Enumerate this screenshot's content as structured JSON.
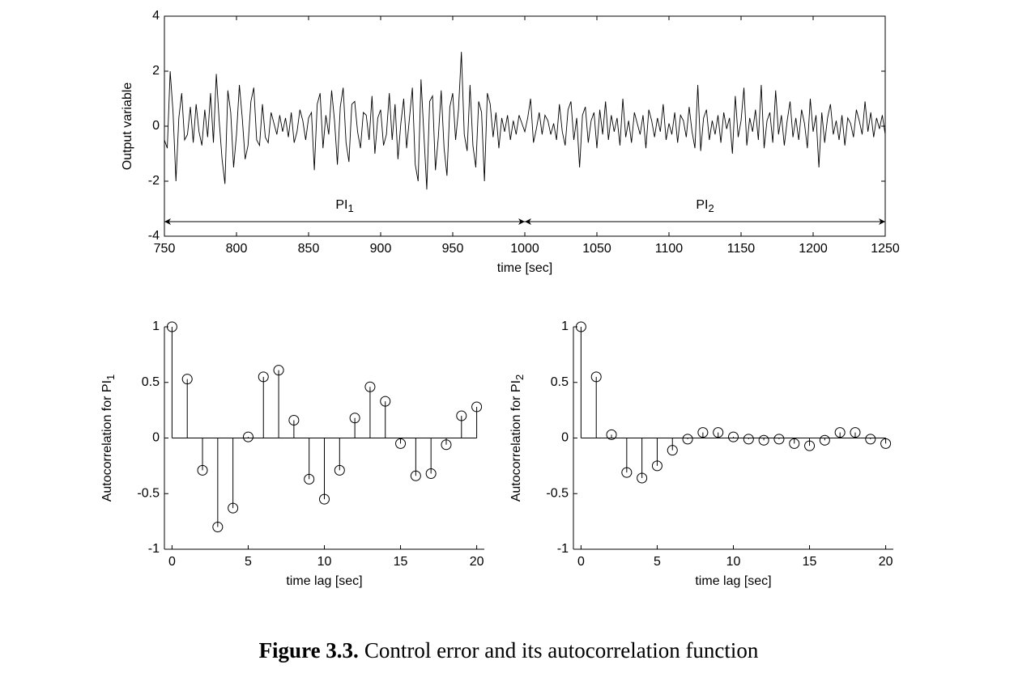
{
  "chart_data": [
    {
      "type": "line",
      "color": "#000000",
      "xlabel": "time [sec]",
      "ylabel": "Output variable",
      "xlim": [
        750,
        1250
      ],
      "ylim": [
        -4,
        4
      ],
      "xticks": [
        750,
        800,
        850,
        900,
        950,
        1000,
        1050,
        1100,
        1150,
        1200,
        1250
      ],
      "yticks": [
        -4,
        -2,
        0,
        2,
        4
      ],
      "x": [
        750,
        752,
        754,
        756,
        758,
        760,
        762,
        764,
        766,
        768,
        770,
        772,
        774,
        776,
        778,
        780,
        782,
        784,
        786,
        788,
        790,
        792,
        794,
        796,
        798,
        800,
        802,
        804,
        806,
        808,
        810,
        812,
        814,
        816,
        818,
        820,
        822,
        824,
        826,
        828,
        830,
        832,
        834,
        836,
        838,
        840,
        842,
        844,
        846,
        848,
        850,
        852,
        854,
        856,
        858,
        860,
        862,
        864,
        866,
        868,
        870,
        872,
        874,
        876,
        878,
        880,
        882,
        884,
        886,
        888,
        890,
        892,
        894,
        896,
        898,
        900,
        902,
        904,
        906,
        908,
        910,
        912,
        914,
        916,
        918,
        920,
        922,
        924,
        926,
        928,
        930,
        932,
        934,
        936,
        938,
        940,
        942,
        944,
        946,
        948,
        950,
        952,
        954,
        956,
        958,
        960,
        962,
        964,
        966,
        968,
        970,
        972,
        974,
        976,
        978,
        980,
        982,
        984,
        986,
        988,
        990,
        992,
        994,
        996,
        998,
        1000,
        1002,
        1004,
        1006,
        1008,
        1010,
        1012,
        1014,
        1016,
        1018,
        1020,
        1022,
        1024,
        1026,
        1028,
        1030,
        1032,
        1034,
        1036,
        1038,
        1040,
        1042,
        1044,
        1046,
        1048,
        1050,
        1052,
        1054,
        1056,
        1058,
        1060,
        1062,
        1064,
        1066,
        1068,
        1070,
        1072,
        1074,
        1076,
        1078,
        1080,
        1082,
        1084,
        1086,
        1088,
        1090,
        1092,
        1094,
        1096,
        1098,
        1100,
        1102,
        1104,
        1106,
        1108,
        1110,
        1112,
        1114,
        1116,
        1118,
        1120,
        1122,
        1124,
        1126,
        1128,
        1130,
        1132,
        1134,
        1136,
        1138,
        1140,
        1142,
        1144,
        1146,
        1148,
        1150,
        1152,
        1154,
        1156,
        1158,
        1160,
        1162,
        1164,
        1166,
        1168,
        1170,
        1172,
        1174,
        1176,
        1178,
        1180,
        1182,
        1184,
        1186,
        1188,
        1190,
        1192,
        1194,
        1196,
        1198,
        1200,
        1202,
        1204,
        1206,
        1208,
        1210,
        1212,
        1214,
        1216,
        1218,
        1220,
        1222,
        1224,
        1226,
        1228,
        1230,
        1232,
        1234,
        1236,
        1238,
        1240,
        1242,
        1244,
        1246,
        1248,
        1250
      ],
      "values": [
        -0.5,
        -0.8,
        2.0,
        0.5,
        -2.0,
        0.3,
        1.2,
        -0.5,
        -0.3,
        0.7,
        -0.6,
        0.8,
        -0.2,
        -0.7,
        0.6,
        -0.4,
        1.2,
        -0.6,
        1.9,
        0.2,
        -1.2,
        -2.1,
        1.3,
        0.5,
        -1.5,
        -0.3,
        1.5,
        0.3,
        -1.2,
        -0.7,
        0.9,
        1.4,
        -0.5,
        -0.7,
        0.8,
        -0.4,
        -0.6,
        0.5,
        0.1,
        -0.3,
        0.4,
        -0.2,
        0.3,
        -0.4,
        0.5,
        -0.6,
        -0.2,
        0.6,
        0.2,
        -0.5,
        0.3,
        0.5,
        -1.6,
        0.8,
        1.2,
        -0.8,
        0.4,
        -0.3,
        1.3,
        0.2,
        -1.4,
        0.7,
        1.4,
        -0.6,
        -1.3,
        0.8,
        0.9,
        -0.2,
        -0.8,
        0.5,
        0.4,
        -0.5,
        1.1,
        -1.0,
        0.3,
        0.6,
        -0.7,
        -0.3,
        1.2,
        -0.5,
        0.8,
        -1.2,
        0.1,
        1.0,
        -0.8,
        0.3,
        1.4,
        -1.4,
        -2.0,
        1.7,
        -0.3,
        -2.3,
        0.9,
        1.1,
        -1.6,
        -0.4,
        1.3,
        -0.8,
        -1.8,
        0.7,
        1.2,
        -0.5,
        0.6,
        2.7,
        -0.3,
        -0.9,
        1.5,
        -0.7,
        -1.5,
        0.9,
        0.5,
        -2.0,
        1.2,
        0.8,
        -0.4,
        0.5,
        -0.8,
        0.3,
        -0.2,
        0.4,
        -0.5,
        0.2,
        -0.3,
        0.4,
        0.1,
        -0.2,
        0.3,
        1.0,
        -0.6,
        -0.1,
        0.5,
        -0.3,
        0.4,
        0.2,
        -0.3,
        0.1,
        -0.5,
        0.8,
        -0.2,
        -0.7,
        0.6,
        0.9,
        -0.5,
        0.3,
        -1.5,
        0.4,
        0.7,
        -0.6,
        0.2,
        0.5,
        -0.8,
        0.6,
        -0.3,
        0.9,
        -0.5,
        0.4,
        -0.2,
        0.3,
        -0.7,
        1.0,
        -0.4,
        0.2,
        -0.6,
        0.5,
        0.1,
        -0.3,
        0.4,
        -0.8,
        0.6,
        0.2,
        -0.4,
        0.3,
        -0.2,
        0.8,
        -0.5,
        0.1,
        -0.3,
        0.5,
        -0.6,
        0.4,
        0.2,
        -0.4,
        0.7,
        -0.2,
        -0.8,
        1.5,
        -0.9,
        0.3,
        0.6,
        -0.5,
        0.2,
        -0.3,
        0.4,
        -0.6,
        0.5,
        -0.1,
        0.3,
        -1.0,
        1.1,
        -0.4,
        0.2,
        1.4,
        -0.7,
        0.3,
        -0.2,
        0.6,
        -0.5,
        1.5,
        -0.8,
        0.2,
        0.5,
        -0.6,
        1.3,
        -0.3,
        0.4,
        -0.7,
        0.2,
        0.9,
        -0.4,
        0.3,
        -0.5,
        0.6,
        0.1,
        -0.8,
        1.0,
        -0.2,
        0.4,
        -1.5,
        0.5,
        -0.6,
        0.3,
        0.8,
        -0.3,
        0.2,
        -0.5,
        0.4,
        -0.7,
        0.3,
        0.1,
        -0.4,
        0.6,
        0.2,
        -0.3,
        0.9,
        -0.2,
        0.5,
        -0.4,
        0.3,
        -0.1,
        0.4,
        -0.3
      ],
      "annotations": [
        {
          "text": "PI",
          "subscript": "1",
          "span": [
            750,
            1000
          ]
        },
        {
          "text": "PI",
          "subscript": "2",
          "span": [
            1000,
            1250
          ]
        }
      ]
    },
    {
      "type": "stem",
      "color": "#000000",
      "xlabel": "time lag [sec]",
      "ylabel": {
        "text": "Autocorrelation for PI",
        "subscript": "1"
      },
      "xlim": [
        -0.5,
        20.5
      ],
      "ylim": [
        -1,
        1
      ],
      "xticks": [
        0,
        5,
        10,
        15,
        20
      ],
      "yticks": [
        -1,
        -0.5,
        0,
        0.5,
        1
      ],
      "x": [
        0,
        1,
        2,
        3,
        4,
        5,
        6,
        7,
        8,
        9,
        10,
        11,
        12,
        13,
        14,
        15,
        16,
        17,
        18,
        19,
        20
      ],
      "values": [
        1,
        0.53,
        -0.29,
        -0.8,
        -0.63,
        0.01,
        0.55,
        0.61,
        0.16,
        -0.37,
        -0.55,
        -0.29,
        0.18,
        0.46,
        0.33,
        -0.05,
        -0.34,
        -0.32,
        -0.06,
        0.2,
        0.28
      ]
    },
    {
      "type": "stem",
      "color": "#000000",
      "xlabel": "time lag [sec]",
      "ylabel": {
        "text": "Autocorrelation for PI",
        "subscript": "2"
      },
      "xlim": [
        -0.5,
        20.5
      ],
      "ylim": [
        -1,
        1
      ],
      "xticks": [
        0,
        5,
        10,
        15,
        20
      ],
      "yticks": [
        -1,
        -0.5,
        0,
        0.5,
        1
      ],
      "x": [
        0,
        1,
        2,
        3,
        4,
        5,
        6,
        7,
        8,
        9,
        10,
        11,
        12,
        13,
        14,
        15,
        16,
        17,
        18,
        19,
        20
      ],
      "values": [
        1,
        0.55,
        0.03,
        -0.31,
        -0.36,
        -0.25,
        -0.11,
        -0.01,
        0.05,
        0.05,
        0.01,
        -0.01,
        -0.02,
        -0.01,
        -0.05,
        -0.07,
        -0.02,
        0.05,
        0.05,
        -0.01,
        -0.05
      ]
    }
  ],
  "caption": {
    "label": "Figure 3.3.",
    "text": "Control error and its autocorrelation function"
  }
}
